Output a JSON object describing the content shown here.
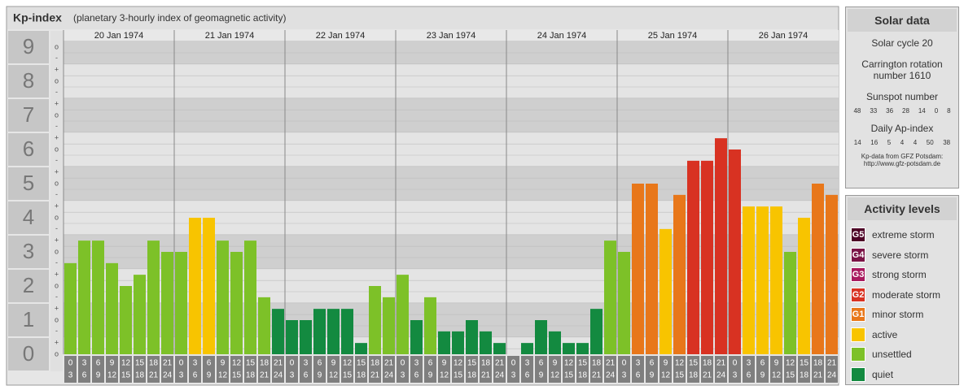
{
  "chart_data": {
    "type": "bar",
    "title": "Kp-index",
    "subtitle": "(planetary 3-hourly index of geomagnetic activity)",
    "days": [
      "20 Jan 1974",
      "21 Jan 1974",
      "22 Jan 1974",
      "23 Jan 1974",
      "24 Jan 1974",
      "25 Jan 1974",
      "26 Jan 1974"
    ],
    "hour_labels": [
      "0",
      "3",
      "6",
      "9",
      "12",
      "15",
      "18",
      "21",
      "24"
    ],
    "values": [
      2.67,
      3.33,
      3.33,
      2.67,
      2,
      2.33,
      3.33,
      3,
      3,
      4,
      4,
      3.33,
      3,
      3.33,
      1.67,
      1.33,
      1,
      1,
      1.33,
      1.33,
      1.33,
      0.33,
      2,
      1.67,
      2.33,
      1,
      1.67,
      0.67,
      0.67,
      1,
      0.67,
      0.33,
      0,
      0.33,
      1,
      0.67,
      0.33,
      0.33,
      1.33,
      3.33,
      3,
      5,
      5,
      3.67,
      4.67,
      5.67,
      5.67,
      6.33,
      6,
      4.33,
      4.33,
      4.33,
      3,
      4,
      5,
      4.67
    ],
    "colors": [
      "#7dc128",
      "#7dc128",
      "#7dc128",
      "#7dc128",
      "#7dc128",
      "#7dc128",
      "#7dc128",
      "#7dc128",
      "#7dc128",
      "#f8c400",
      "#f8c400",
      "#7dc128",
      "#7dc128",
      "#7dc128",
      "#7dc128",
      "#138a40",
      "#138a40",
      "#138a40",
      "#138a40",
      "#138a40",
      "#138a40",
      "#138a40",
      "#7dc128",
      "#7dc128",
      "#7dc128",
      "#138a40",
      "#7dc128",
      "#138a40",
      "#138a40",
      "#138a40",
      "#138a40",
      "#138a40",
      "#138a40",
      "#138a40",
      "#138a40",
      "#138a40",
      "#138a40",
      "#138a40",
      "#138a40",
      "#7dc128",
      "#7dc128",
      "#e8771a",
      "#e8771a",
      "#f8c400",
      "#e8771a",
      "#d83222",
      "#d83222",
      "#d83222",
      "#d83222",
      "#f8c400",
      "#f8c400",
      "#f8c400",
      "#7dc128",
      "#f8c400",
      "#e8771a",
      "#e8771a"
    ],
    "ylim": [
      0,
      9
    ],
    "yticks": [
      0,
      1,
      2,
      3,
      4,
      5,
      6,
      7,
      8,
      9
    ],
    "minor_yticks": [
      {
        "value": 0,
        "label": "o"
      },
      {
        "value": 0.33,
        "label": "+"
      },
      {
        "value": 0.67,
        "label": "-"
      },
      {
        "value": 1,
        "label": "o"
      },
      {
        "value": 1.33,
        "label": "+"
      },
      {
        "value": 1.67,
        "label": "-"
      },
      {
        "value": 2,
        "label": "o"
      },
      {
        "value": 2.33,
        "label": "+"
      },
      {
        "value": 2.67,
        "label": "-"
      },
      {
        "value": 3,
        "label": "o"
      },
      {
        "value": 3.33,
        "label": "+"
      },
      {
        "value": 3.67,
        "label": "-"
      },
      {
        "value": 4,
        "label": "o"
      },
      {
        "value": 4.33,
        "label": "+"
      },
      {
        "value": 4.67,
        "label": "-"
      },
      {
        "value": 5,
        "label": "o"
      },
      {
        "value": 5.33,
        "label": "+"
      },
      {
        "value": 5.67,
        "label": "-"
      },
      {
        "value": 6,
        "label": "o"
      },
      {
        "value": 6.33,
        "label": "+"
      },
      {
        "value": 6.67,
        "label": "-"
      },
      {
        "value": 7,
        "label": "o"
      },
      {
        "value": 7.33,
        "label": "+"
      },
      {
        "value": 7.67,
        "label": "-"
      },
      {
        "value": 8,
        "label": "o"
      },
      {
        "value": 8.33,
        "label": "+"
      },
      {
        "value": 8.67,
        "label": "-"
      },
      {
        "value": 9,
        "label": "o"
      }
    ],
    "grid": true
  },
  "solar_data": {
    "title": "Solar data",
    "cycle": "Solar cycle 20",
    "carrington": "Carrington rotation number 1610",
    "sunspot_title": "Sunspot number",
    "sunspot": [
      48,
      33,
      36,
      28,
      14,
      0,
      8
    ],
    "ap_title": "Daily Ap-index",
    "ap": [
      14,
      16,
      5,
      4,
      4,
      50,
      38
    ],
    "source": "Kp-data from GFZ Potsdam:",
    "url": "http://www.gfz-potsdam.de"
  },
  "activity_levels": {
    "title": "Activity levels",
    "items": [
      {
        "badge": "G5",
        "name": "extreme storm",
        "color": "#4d0026"
      },
      {
        "badge": "G4",
        "name": "severe storm",
        "color": "#7a1446"
      },
      {
        "badge": "G3",
        "name": "strong storm",
        "color": "#a8195e"
      },
      {
        "badge": "G2",
        "name": "moderate storm",
        "color": "#d83222"
      },
      {
        "badge": "G1",
        "name": "minor storm",
        "color": "#e8771a"
      },
      {
        "name": "active",
        "color": "#f8c400"
      },
      {
        "name": "unsettled",
        "color": "#7dc128"
      },
      {
        "name": "quiet",
        "color": "#138a40"
      }
    ]
  }
}
